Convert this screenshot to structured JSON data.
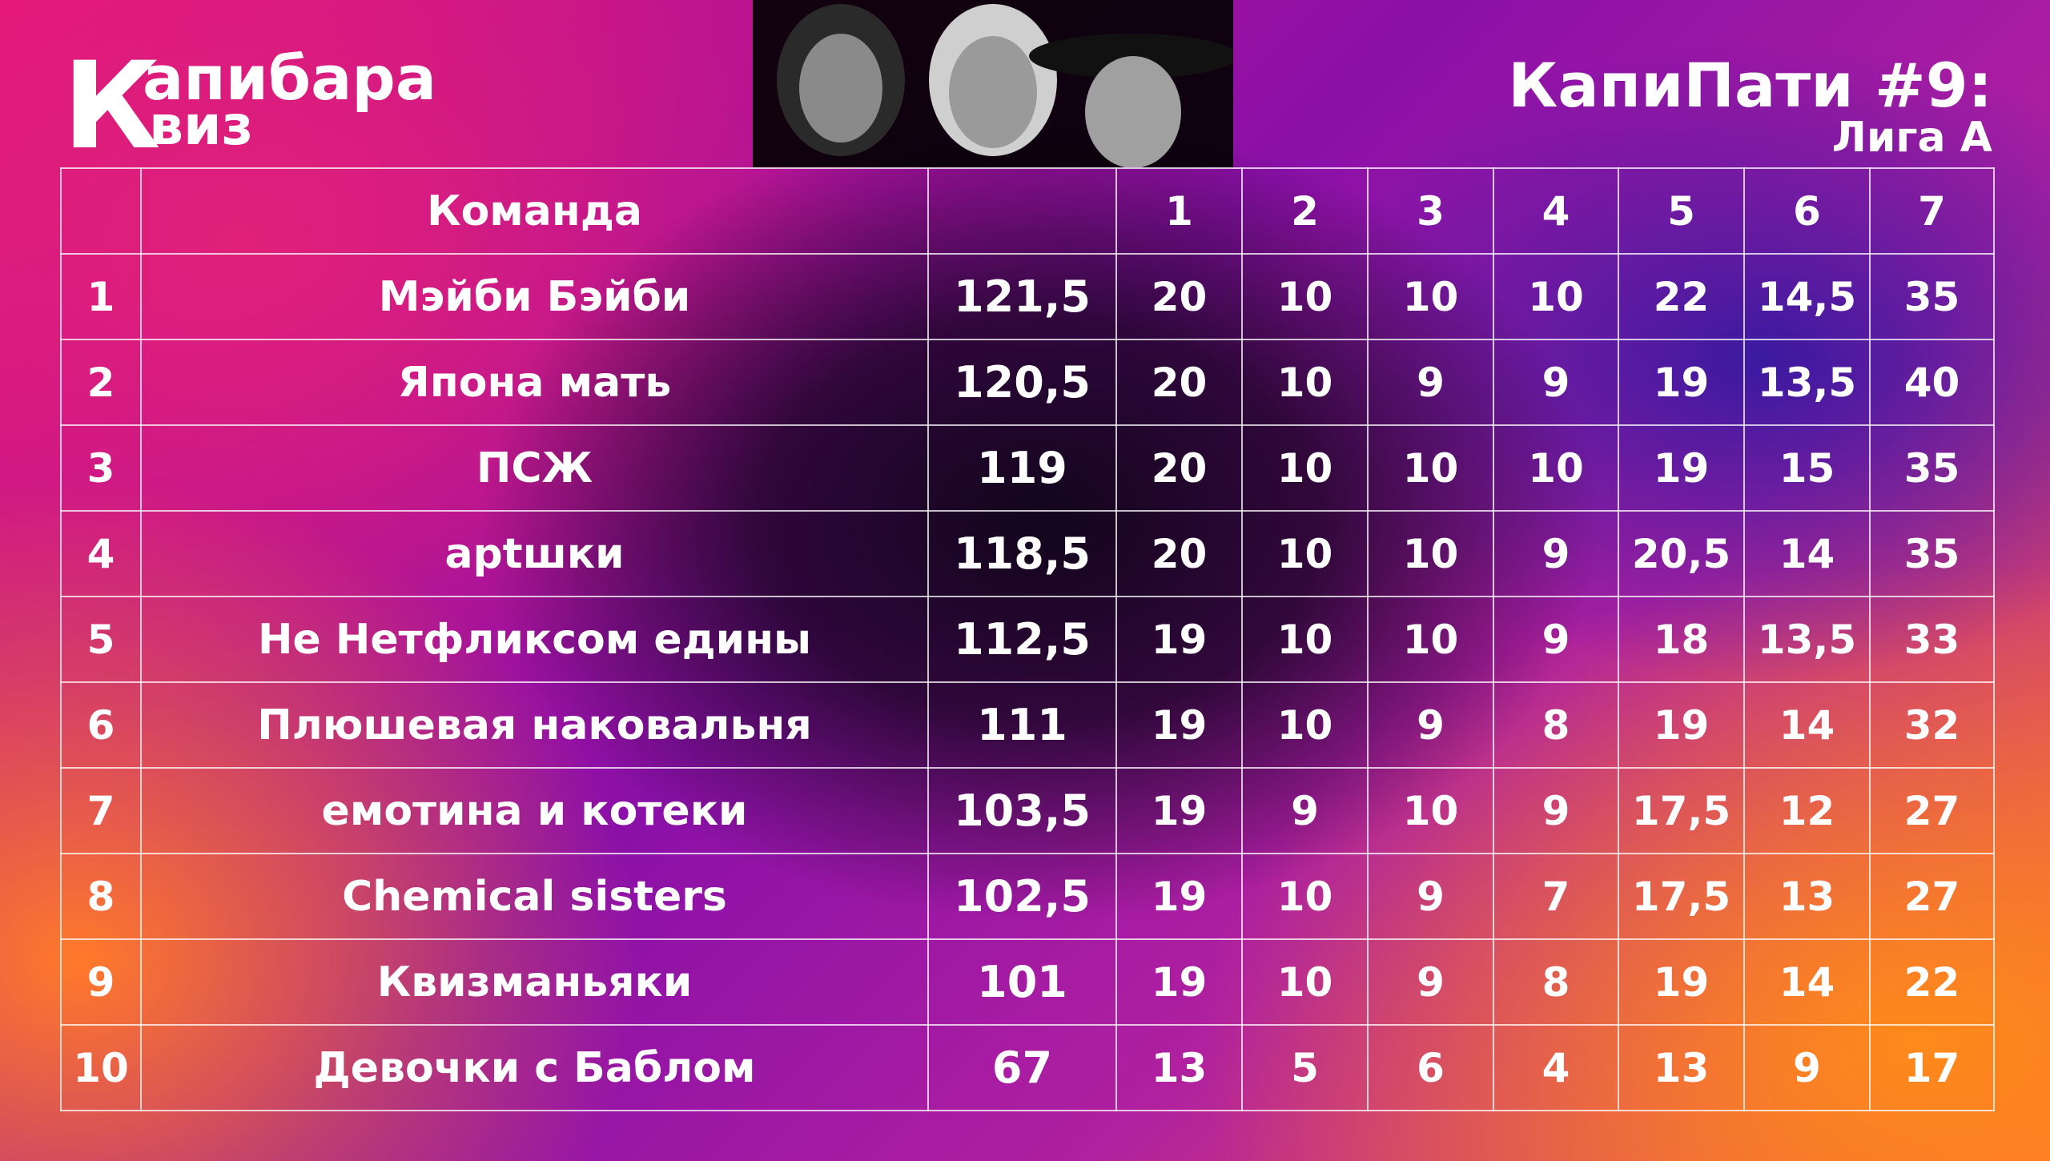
{
  "header": {
    "logo": {
      "letter": "К",
      "line1": "апибара",
      "line2": "виз"
    },
    "title": "КапиПати #9:",
    "subtitle": "Лига А"
  },
  "table": {
    "columns": {
      "team": "Команда",
      "rounds": [
        "1",
        "2",
        "3",
        "4",
        "5",
        "6",
        "7"
      ]
    },
    "rows": [
      {
        "place": "1",
        "team": "Мэйби Бэйби",
        "total": "121,5",
        "scores": [
          "20",
          "10",
          "10",
          "10",
          "22",
          "14,5",
          "35"
        ]
      },
      {
        "place": "2",
        "team": "Япона мать",
        "total": "120,5",
        "scores": [
          "20",
          "10",
          "9",
          "9",
          "19",
          "13,5",
          "40"
        ]
      },
      {
        "place": "3",
        "team": "ПСЖ",
        "total": "119",
        "scores": [
          "20",
          "10",
          "10",
          "10",
          "19",
          "15",
          "35"
        ]
      },
      {
        "place": "4",
        "team": "арtшки",
        "total": "118,5",
        "scores": [
          "20",
          "10",
          "10",
          "9",
          "20,5",
          "14",
          "35"
        ]
      },
      {
        "place": "5",
        "team": "Не Нетфликсом едины",
        "total": "112,5",
        "scores": [
          "19",
          "10",
          "10",
          "9",
          "18",
          "13,5",
          "33"
        ]
      },
      {
        "place": "6",
        "team": "Плюшевая наковальня",
        "total": "111",
        "scores": [
          "19",
          "10",
          "9",
          "8",
          "19",
          "14",
          "32"
        ]
      },
      {
        "place": "7",
        "team": "емотина и котеки",
        "total": "103,5",
        "scores": [
          "19",
          "9",
          "10",
          "9",
          "17,5",
          "12",
          "27"
        ]
      },
      {
        "place": "8",
        "team": "Chemical sisters",
        "total": "102,5",
        "scores": [
          "19",
          "10",
          "9",
          "7",
          "17,5",
          "13",
          "27"
        ]
      },
      {
        "place": "9",
        "team": "Квизманьяки",
        "total": "101",
        "scores": [
          "19",
          "10",
          "9",
          "8",
          "19",
          "14",
          "22"
        ]
      },
      {
        "place": "10",
        "team": "Девочки с Баблом",
        "total": "67",
        "scores": [
          "13",
          "5",
          "6",
          "4",
          "13",
          "9",
          "17"
        ]
      }
    ]
  }
}
